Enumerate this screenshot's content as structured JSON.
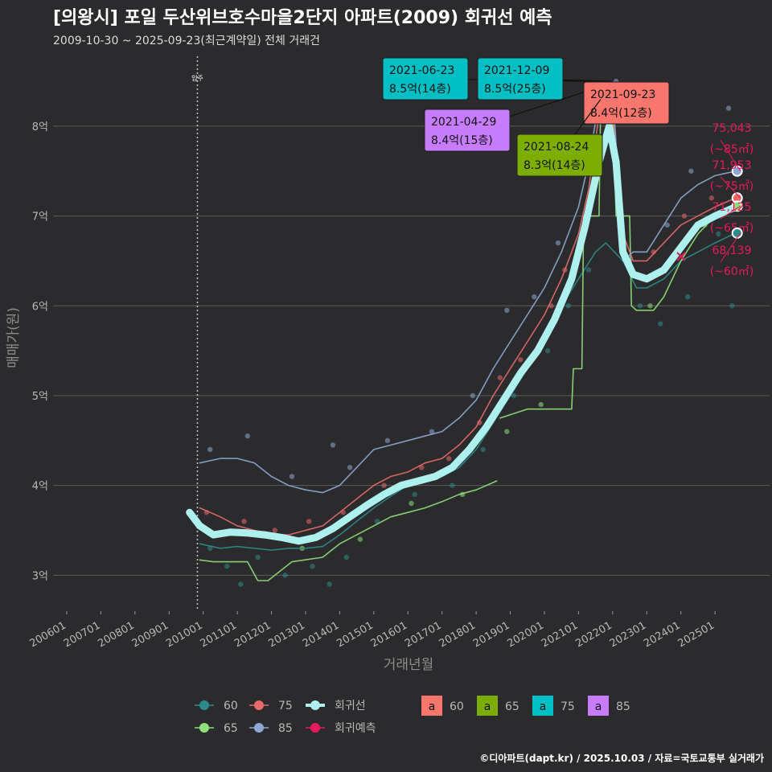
{
  "title": "[의왕시] 포일 두산위브호수마을2단지 아파트(2009) 회귀선 예측",
  "subtitle": "2009-10-30 ~ 2025-09-23(최근계약일) 전체 거래건",
  "footer": "©디아파트(dapt.kr) / 2025.10.03 / 자료=국토교통부 실거래가",
  "colors": {
    "bg": "#2b2b2d",
    "grid": "#5c5c5c",
    "s60": "#2e8b8b",
    "s65": "#8fe07a",
    "s75": "#e86a6a",
    "s85": "#8ea8d4",
    "regression": "#aef0ee",
    "prediction": "#e8185e",
    "box60": "#f8766d",
    "box65": "#7cae00",
    "box75": "#00bfc4",
    "box85": "#c77cff"
  },
  "chart_data": {
    "type": "line",
    "xlabel": "거래년월",
    "ylabel": "매매가(원)",
    "x_ticks": [
      "200601",
      "200701",
      "200801",
      "200901",
      "201001",
      "201101",
      "201201",
      "201301",
      "201401",
      "201501",
      "201601",
      "201701",
      "201801",
      "201901",
      "202001",
      "202101",
      "202201",
      "202301",
      "202401",
      "202501"
    ],
    "y_ticks": [
      {
        "value": 3,
        "label": "3억"
      },
      {
        "value": 4,
        "label": "4억"
      },
      {
        "value": 5,
        "label": "5억"
      },
      {
        "value": 6,
        "label": "6억"
      },
      {
        "value": 7,
        "label": "7억"
      },
      {
        "value": 8,
        "label": "8억"
      }
    ],
    "ylim": [
      2.6,
      8.85
    ],
    "xlim": [
      2005.6,
      2026.6
    ],
    "event": {
      "x": 2009.83,
      "label": "입주"
    },
    "series": [
      {
        "name": "60",
        "key": "s60",
        "points": [
          [
            2009.9,
            3.35
          ],
          [
            2010.5,
            3.3
          ],
          [
            2011.0,
            3.32
          ],
          [
            2011.5,
            3.3
          ],
          [
            2012.0,
            3.28
          ],
          [
            2012.5,
            3.3
          ],
          [
            2013.0,
            3.3
          ],
          [
            2013.5,
            3.32
          ],
          [
            2014.0,
            3.45
          ],
          [
            2014.5,
            3.6
          ],
          [
            2015.0,
            3.75
          ],
          [
            2015.5,
            3.88
          ],
          [
            2016.0,
            4.0
          ],
          [
            2016.5,
            4.05
          ],
          [
            2017.0,
            4.1
          ],
          [
            2017.5,
            4.2
          ],
          [
            2018.0,
            4.4
          ],
          [
            2018.5,
            4.7
          ],
          [
            2019.0,
            5.0
          ],
          [
            2019.5,
            5.3
          ],
          [
            2020.0,
            5.6
          ],
          [
            2020.5,
            6.0
          ],
          [
            2021.0,
            6.3
          ],
          [
            2021.5,
            6.6
          ],
          [
            2021.8,
            6.7
          ],
          [
            2022.3,
            6.5
          ],
          [
            2022.7,
            6.2
          ],
          [
            2023.0,
            6.2
          ],
          [
            2023.5,
            6.3
          ],
          [
            2024.0,
            6.5
          ],
          [
            2024.5,
            6.6
          ],
          [
            2025.0,
            6.7
          ],
          [
            2025.6,
            6.81
          ]
        ]
      },
      {
        "name": "65",
        "key": "s65",
        "points": [
          [
            2009.9,
            3.17
          ],
          [
            2010.3,
            3.15
          ],
          [
            2011.3,
            3.15
          ],
          [
            2011.6,
            2.94
          ],
          [
            2011.9,
            2.94
          ],
          [
            2012.6,
            3.15
          ],
          [
            2013.5,
            3.2
          ],
          [
            2014.0,
            3.35
          ],
          [
            2014.5,
            3.45
          ],
          [
            2015.0,
            3.55
          ],
          [
            2015.5,
            3.65
          ],
          [
            2016.0,
            3.7
          ],
          [
            2016.5,
            3.75
          ],
          [
            2017.0,
            3.82
          ],
          [
            2017.5,
            3.9
          ],
          [
            2018.0,
            3.95
          ],
          [
            2018.6,
            4.05
          ]
        ]
      },
      {
        "name": "65",
        "key": "s65",
        "points": [
          [
            2018.7,
            4.75
          ],
          [
            2019.5,
            4.85
          ],
          [
            2020.8,
            4.85
          ],
          [
            2020.85,
            5.3
          ],
          [
            2021.1,
            5.3
          ],
          [
            2021.15,
            7.0
          ],
          [
            2021.6,
            7.0
          ],
          [
            2021.65,
            8.3
          ],
          [
            2022.0,
            8.3
          ],
          [
            2022.1,
            7.0
          ],
          [
            2022.5,
            7.0
          ],
          [
            2022.55,
            6.0
          ],
          [
            2022.7,
            5.95
          ],
          [
            2023.2,
            5.95
          ],
          [
            2023.5,
            6.1
          ],
          [
            2024.0,
            6.5
          ],
          [
            2024.5,
            6.8
          ],
          [
            2025.0,
            7.0
          ],
          [
            2025.6,
            7.11
          ]
        ]
      },
      {
        "name": "75",
        "key": "s75",
        "points": [
          [
            2009.9,
            3.75
          ],
          [
            2010.5,
            3.65
          ],
          [
            2011.0,
            3.55
          ],
          [
            2011.5,
            3.5
          ],
          [
            2012.0,
            3.45
          ],
          [
            2012.5,
            3.45
          ],
          [
            2013.0,
            3.5
          ],
          [
            2013.5,
            3.55
          ],
          [
            2014.0,
            3.7
          ],
          [
            2014.5,
            3.85
          ],
          [
            2015.0,
            4.0
          ],
          [
            2015.5,
            4.1
          ],
          [
            2016.0,
            4.15
          ],
          [
            2016.5,
            4.25
          ],
          [
            2017.0,
            4.3
          ],
          [
            2017.5,
            4.45
          ],
          [
            2018.0,
            4.65
          ],
          [
            2018.5,
            5.0
          ],
          [
            2019.0,
            5.3
          ],
          [
            2019.5,
            5.6
          ],
          [
            2020.0,
            5.9
          ],
          [
            2020.5,
            6.3
          ],
          [
            2021.0,
            6.8
          ],
          [
            2021.3,
            7.3
          ],
          [
            2021.7,
            8.4
          ],
          [
            2022.0,
            8.2
          ],
          [
            2022.3,
            6.8
          ],
          [
            2022.6,
            6.5
          ],
          [
            2023.0,
            6.5
          ],
          [
            2023.5,
            6.7
          ],
          [
            2024.0,
            6.9
          ],
          [
            2024.5,
            7.0
          ],
          [
            2025.0,
            7.1
          ],
          [
            2025.6,
            7.2
          ]
        ]
      },
      {
        "name": "85",
        "key": "s85",
        "points": [
          [
            2009.9,
            4.25
          ],
          [
            2010.5,
            4.3
          ],
          [
            2011.0,
            4.3
          ],
          [
            2011.5,
            4.25
          ],
          [
            2012.0,
            4.1
          ],
          [
            2012.5,
            4.0
          ],
          [
            2013.0,
            3.95
          ],
          [
            2013.5,
            3.92
          ],
          [
            2014.0,
            4.0
          ],
          [
            2014.5,
            4.2
          ],
          [
            2015.0,
            4.4
          ],
          [
            2015.5,
            4.45
          ],
          [
            2016.0,
            4.5
          ],
          [
            2016.5,
            4.55
          ],
          [
            2017.0,
            4.6
          ],
          [
            2017.5,
            4.75
          ],
          [
            2018.0,
            4.95
          ],
          [
            2018.5,
            5.3
          ],
          [
            2019.0,
            5.6
          ],
          [
            2019.5,
            5.9
          ],
          [
            2020.0,
            6.2
          ],
          [
            2020.5,
            6.6
          ],
          [
            2021.0,
            7.1
          ],
          [
            2021.3,
            7.6
          ],
          [
            2021.7,
            8.5
          ],
          [
            2022.0,
            8.45
          ],
          [
            2022.3,
            6.5
          ],
          [
            2022.6,
            6.6
          ],
          [
            2023.0,
            6.6
          ],
          [
            2023.5,
            6.9
          ],
          [
            2024.0,
            7.2
          ],
          [
            2024.5,
            7.35
          ],
          [
            2025.0,
            7.45
          ],
          [
            2025.6,
            7.5
          ]
        ]
      },
      {
        "name": "회귀선",
        "key": "regression",
        "points": [
          [
            2009.6,
            3.7
          ],
          [
            2009.9,
            3.55
          ],
          [
            2010.3,
            3.45
          ],
          [
            2010.8,
            3.48
          ],
          [
            2011.3,
            3.47
          ],
          [
            2011.8,
            3.45
          ],
          [
            2012.3,
            3.42
          ],
          [
            2012.8,
            3.38
          ],
          [
            2013.3,
            3.42
          ],
          [
            2013.8,
            3.52
          ],
          [
            2014.3,
            3.65
          ],
          [
            2014.8,
            3.78
          ],
          [
            2015.3,
            3.9
          ],
          [
            2015.8,
            4.0
          ],
          [
            2016.3,
            4.05
          ],
          [
            2016.8,
            4.1
          ],
          [
            2017.3,
            4.2
          ],
          [
            2017.8,
            4.4
          ],
          [
            2018.3,
            4.65
          ],
          [
            2018.8,
            4.95
          ],
          [
            2019.3,
            5.25
          ],
          [
            2019.8,
            5.5
          ],
          [
            2020.3,
            5.85
          ],
          [
            2020.8,
            6.3
          ],
          [
            2021.2,
            6.9
          ],
          [
            2021.6,
            7.6
          ],
          [
            2021.9,
            8.0
          ],
          [
            2022.1,
            7.6
          ],
          [
            2022.3,
            6.6
          ],
          [
            2022.6,
            6.35
          ],
          [
            2023.0,
            6.3
          ],
          [
            2023.5,
            6.4
          ],
          [
            2024.0,
            6.65
          ],
          [
            2024.5,
            6.9
          ],
          [
            2025.0,
            7.0
          ],
          [
            2025.6,
            7.1
          ]
        ]
      }
    ],
    "scatter_bands": [
      {
        "key": "s60",
        "points": [
          [
            2010.2,
            3.3
          ],
          [
            2010.7,
            3.1
          ],
          [
            2011.1,
            2.9
          ],
          [
            2011.6,
            3.2
          ],
          [
            2012.4,
            3.0
          ],
          [
            2013.2,
            3.1
          ],
          [
            2013.7,
            2.9
          ],
          [
            2014.2,
            3.2
          ],
          [
            2015.1,
            3.6
          ],
          [
            2016.2,
            3.9
          ],
          [
            2017.3,
            4.0
          ],
          [
            2018.2,
            4.4
          ],
          [
            2019.1,
            5.0
          ],
          [
            2020.1,
            5.5
          ],
          [
            2020.7,
            6.0
          ],
          [
            2021.3,
            6.4
          ],
          [
            2022.8,
            6.0
          ],
          [
            2023.4,
            5.8
          ],
          [
            2024.2,
            6.1
          ],
          [
            2025.1,
            6.8
          ],
          [
            2025.5,
            6.0
          ]
        ]
      },
      {
        "key": "s65",
        "points": [
          [
            2012.9,
            3.3
          ],
          [
            2014.6,
            3.4
          ],
          [
            2016.1,
            3.8
          ],
          [
            2017.6,
            3.9
          ],
          [
            2018.9,
            4.6
          ],
          [
            2019.9,
            4.9
          ],
          [
            2021.8,
            7.9
          ],
          [
            2023.1,
            6.0
          ],
          [
            2024.7,
            6.9
          ]
        ]
      },
      {
        "key": "s75",
        "points": [
          [
            2010.1,
            3.7
          ],
          [
            2011.2,
            3.6
          ],
          [
            2012.1,
            3.5
          ],
          [
            2013.1,
            3.6
          ],
          [
            2014.1,
            3.7
          ],
          [
            2015.3,
            4.0
          ],
          [
            2016.4,
            4.2
          ],
          [
            2017.2,
            4.3
          ],
          [
            2018.1,
            4.7
          ],
          [
            2018.7,
            5.2
          ],
          [
            2019.3,
            5.4
          ],
          [
            2020.2,
            6.0
          ],
          [
            2020.6,
            6.4
          ],
          [
            2021.1,
            6.8
          ],
          [
            2021.9,
            8.0
          ],
          [
            2023.2,
            6.6
          ],
          [
            2024.1,
            7.0
          ],
          [
            2024.9,
            7.2
          ]
        ]
      },
      {
        "key": "s85",
        "points": [
          [
            2010.2,
            4.4
          ],
          [
            2011.3,
            4.55
          ],
          [
            2012.6,
            4.1
          ],
          [
            2013.8,
            4.45
          ],
          [
            2014.3,
            4.2
          ],
          [
            2015.4,
            4.5
          ],
          [
            2016.7,
            4.6
          ],
          [
            2017.9,
            5.0
          ],
          [
            2018.9,
            5.95
          ],
          [
            2019.7,
            6.1
          ],
          [
            2020.4,
            6.7
          ],
          [
            2021.4,
            7.7
          ],
          [
            2022.1,
            8.5
          ],
          [
            2022.5,
            6.5
          ],
          [
            2023.6,
            6.9
          ],
          [
            2024.3,
            7.5
          ],
          [
            2025.4,
            8.2
          ]
        ]
      }
    ],
    "annotations": [
      {
        "date": "2021-06-23",
        "text": "8.5억(14층)",
        "color": "box75",
        "ax": 2021.48,
        "ay": 8.5
      },
      {
        "date": "2021-12-09",
        "text": "8.5억(25층)",
        "color": "box75",
        "ax": 2021.94,
        "ay": 8.5
      },
      {
        "date": "2021-04-29",
        "text": "8.4억(15층)",
        "color": "box85",
        "ax": 2021.33,
        "ay": 8.4
      },
      {
        "date": "2021-09-23",
        "text": "8.4억(12층)",
        "color": "box60",
        "ax": 2021.73,
        "ay": 8.4
      },
      {
        "date": "2021-08-24",
        "text": "8.3억(14층)",
        "color": "box65",
        "ax": 2021.65,
        "ay": 8.3
      }
    ],
    "predictions": [
      {
        "value": "75,043",
        "area": "(~85㎡)",
        "y": 7.5,
        "color": "s85"
      },
      {
        "value": "71,953",
        "area": "(~75㎡)",
        "y": 7.2,
        "color": "s75"
      },
      {
        "value": "71,125",
        "area": "(~65㎡)",
        "y": 7.11,
        "color": "s65"
      },
      {
        "value": "68,139",
        "area": "(~60㎡)",
        "y": 6.81,
        "color": "s60"
      }
    ],
    "legend_lines": [
      {
        "label": "60",
        "key": "s60"
      },
      {
        "label": "75",
        "key": "s75"
      },
      {
        "label": "회귀선",
        "key": "regression"
      },
      {
        "label": "65",
        "key": "s65"
      },
      {
        "label": "85",
        "key": "s85"
      },
      {
        "label": "회귀예측",
        "key": "prediction"
      }
    ],
    "legend_boxes": [
      {
        "label": "60",
        "key": "box60"
      },
      {
        "label": "65",
        "key": "box65"
      },
      {
        "label": "75",
        "key": "box75"
      },
      {
        "label": "85",
        "key": "box85"
      }
    ],
    "legend_box_glyph": "a"
  }
}
